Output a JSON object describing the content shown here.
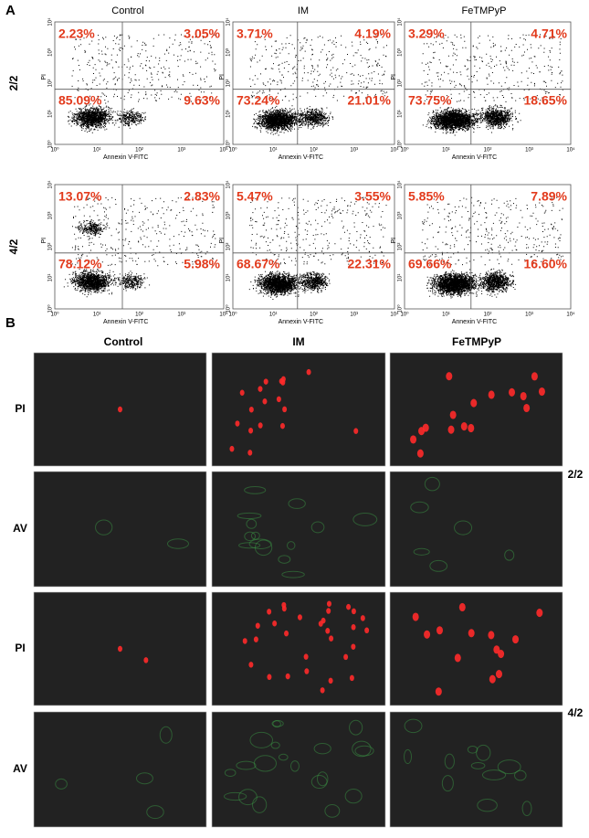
{
  "panel_a": {
    "label": "A",
    "columns": [
      "Control",
      "IM",
      "FeTMPyP"
    ],
    "row_labels": [
      "2/2",
      "4/2"
    ],
    "x_axis_label": "Annexin V-FITC",
    "y_axis_label": "PI",
    "axis_ticks": [
      "10⁰",
      "10¹",
      "10²",
      "10³",
      "10⁴"
    ],
    "plots": [
      [
        {
          "upper_left": "2.23%",
          "upper_right": "3.05%",
          "lower_left": "85.09%",
          "lower_right": "9.63%"
        },
        {
          "upper_left": "3.71%",
          "upper_right": "4.19%",
          "lower_left": "73.24%",
          "lower_right": "21.01%"
        },
        {
          "upper_left": "3.29%",
          "upper_right": "4.71%",
          "lower_left": "73.75%",
          "lower_right": "18.65%"
        }
      ],
      [
        {
          "upper_left": "13.07%",
          "upper_right": "2.83%",
          "lower_left": "78.12%",
          "lower_right": "5.98%"
        },
        {
          "upper_left": "5.47%",
          "upper_right": "3.55%",
          "lower_left": "68.67%",
          "lower_right": "22.31%"
        },
        {
          "upper_left": "5.85%",
          "upper_right": "7.89%",
          "lower_left": "69.66%",
          "lower_right": "16.60%"
        }
      ]
    ]
  },
  "panel_b": {
    "label": "B",
    "columns": [
      "Control",
      "IM",
      "FeTMPyP"
    ],
    "row_labels": [
      "PI",
      "AV",
      "PI",
      "AV"
    ],
    "group_labels": [
      "2/2",
      "4/2"
    ]
  }
}
